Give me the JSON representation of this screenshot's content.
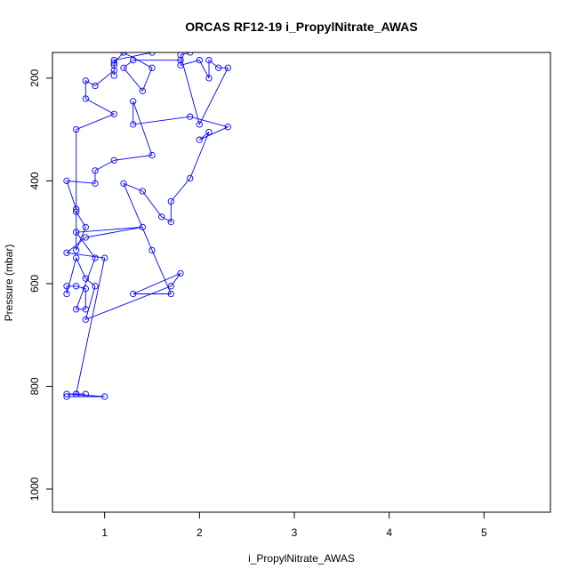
{
  "chart_data": {
    "type": "line",
    "title": "ORCAS RF12-19 i_PropylNitrate_AWAS",
    "xlabel": "i_PropylNitrate_AWAS",
    "ylabel": "Pressure (mbar)",
    "xlim": [
      0.45,
      5.7
    ],
    "ylim": [
      1045,
      150
    ],
    "y_reversed": true,
    "x_ticks": [
      1,
      2,
      3,
      4,
      5
    ],
    "y_ticks": [
      200,
      400,
      600,
      800,
      1000
    ],
    "grid": false,
    "legend": "none",
    "series_color": "#0000ff",
    "series": [
      {
        "values": [
          [
            0.6,
            820
          ],
          [
            1.0,
            820
          ],
          [
            0.6,
            815
          ],
          [
            0.7,
            815
          ],
          [
            0.8,
            815
          ],
          [
            0.7,
            815
          ],
          [
            1.0,
            550
          ],
          [
            0.6,
            540
          ],
          [
            0.8,
            510
          ],
          [
            1.4,
            490
          ],
          [
            0.7,
            500
          ],
          [
            0.9,
            550
          ],
          [
            0.7,
            650
          ],
          [
            0.8,
            650
          ],
          [
            0.8,
            610
          ],
          [
            0.7,
            605
          ],
          [
            0.6,
            605
          ],
          [
            0.6,
            620
          ],
          [
            0.7,
            550
          ],
          [
            0.8,
            590
          ],
          [
            0.9,
            605
          ],
          [
            0.8,
            670
          ],
          [
            1.7,
            605
          ],
          [
            1.8,
            580
          ],
          [
            1.3,
            620
          ],
          [
            1.7,
            620
          ],
          [
            1.5,
            535
          ],
          [
            1.2,
            405
          ],
          [
            1.4,
            420
          ],
          [
            1.6,
            470
          ],
          [
            1.7,
            480
          ],
          [
            1.7,
            440
          ],
          [
            1.9,
            395
          ],
          [
            2.1,
            305
          ],
          [
            2.0,
            320
          ],
          [
            2.3,
            295
          ],
          [
            1.9,
            275
          ],
          [
            1.3,
            290
          ],
          [
            1.3,
            245
          ],
          [
            1.5,
            350
          ],
          [
            1.1,
            360
          ],
          [
            0.9,
            380
          ],
          [
            0.9,
            405
          ],
          [
            0.6,
            400
          ],
          [
            0.7,
            455
          ],
          [
            0.7,
            460
          ],
          [
            0.8,
            490
          ],
          [
            0.7,
            535
          ],
          [
            0.7,
            300
          ],
          [
            1.1,
            270
          ],
          [
            0.8,
            240
          ],
          [
            0.8,
            205
          ],
          [
            0.9,
            215
          ],
          [
            1.1,
            185
          ],
          [
            1.1,
            195
          ],
          [
            1.1,
            170
          ],
          [
            1.2,
            150
          ],
          [
            1.5,
            180
          ],
          [
            1.4,
            225
          ],
          [
            1.2,
            180
          ],
          [
            1.3,
            165
          ],
          [
            1.8,
            165
          ],
          [
            1.8,
            175
          ],
          [
            2.0,
            165
          ],
          [
            2.1,
            200
          ],
          [
            2.1,
            165
          ],
          [
            2.2,
            180
          ],
          [
            2.3,
            180
          ],
          [
            2.0,
            290
          ],
          [
            1.8,
            155
          ],
          [
            1.9,
            150
          ],
          [
            1.5,
            150
          ],
          [
            1.1,
            165
          ],
          [
            1.1,
            175
          ]
        ]
      }
    ]
  }
}
